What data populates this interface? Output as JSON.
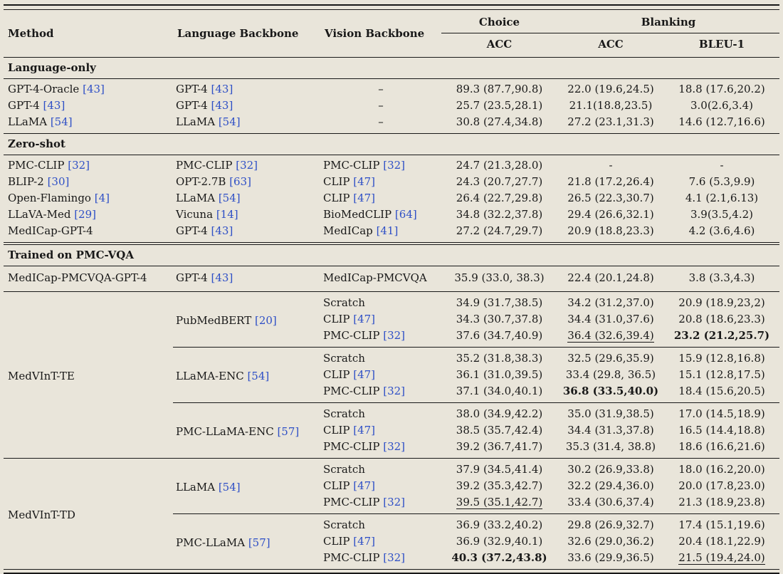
{
  "theme": {
    "background": "#e9e5da",
    "text": "#181818",
    "citation": "#2e4fc6",
    "rule": "#181818"
  },
  "header": {
    "method": "Method",
    "language": "Language Backbone",
    "vision": "Vision Backbone",
    "choice": "Choice",
    "blanking": "Blanking",
    "choice_acc": "ACC",
    "blanking_acc": "ACC",
    "bleu": "BLEU-1"
  },
  "sections": [
    {
      "label": "Language-only",
      "rows": [
        {
          "method": "GPT-4-Oracle [43]",
          "lang": "GPT-4 [43]",
          "vision": "–",
          "vals": [
            "89.3 (87.7,90.8)",
            "22.0 (19.6,24.5)",
            "18.8 (17.6,20.2)"
          ]
        },
        {
          "method": "GPT-4 [43]",
          "lang": "GPT-4 [43]",
          "vision": "–",
          "vals": [
            "25.7 (23.5,28.1)",
            "21.1(18.8,23.5)",
            "3.0(2.6,3.4)"
          ]
        },
        {
          "method": "LLaMA [54]",
          "lang": "LLaMA [54]",
          "vision": "–",
          "vals": [
            "30.8 (27.4,34.8)",
            "27.2 (23.1,31.3)",
            "14.6 (12.7,16.6)"
          ]
        }
      ]
    },
    {
      "label": "Zero-shot",
      "rows": [
        {
          "method": "PMC-CLIP [32]",
          "lang": "PMC-CLIP [32]",
          "vision": "PMC-CLIP [32]",
          "vals": [
            "24.7 (21.3,28.0)",
            "-",
            "-"
          ]
        },
        {
          "method": "BLIP-2 [30]",
          "lang": "OPT-2.7B [63]",
          "vision": "CLIP [47]",
          "vals": [
            "24.3 (20.7,27.7)",
            "21.8 (17.2,26.4)",
            "7.6 (5.3,9.9)"
          ]
        },
        {
          "method": "Open-Flamingo [4]",
          "lang": "LLaMA [54]",
          "vision": "CLIP [47]",
          "vals": [
            "26.4 (22.7,29.8)",
            "26.5 (22.3,30.7)",
            "4.1 (2.1,6.13)"
          ]
        },
        {
          "method": "LLaVA-Med [29]",
          "lang": "Vicuna [14]",
          "vision": "BioMedCLIP [64]",
          "vals": [
            "34.8 (32.2,37.8)",
            "29.4 (26.6,32.1)",
            "3.9(3.5,4.2)"
          ]
        },
        {
          "method": "MedICap-GPT-4",
          "lang": "GPT-4 [43]",
          "vision": "MedICap [41]",
          "vals": [
            "27.2 (24.7,29.7)",
            "20.9 (18.8,23.3)",
            "4.2 (3.6,4.6)"
          ]
        }
      ]
    },
    {
      "label": "Trained on PMC-VQA",
      "double_top_rule": true,
      "rows": [
        {
          "method": "MedICap-PMCVQA-GPT-4",
          "lang": "GPT-4 [43]",
          "vision": "MedICap-PMCVQA",
          "vals": [
            "35.9 (33.0, 38.3)",
            "22.4 (20.1,24.8)",
            "3.8 (3.3,4.3)"
          ]
        }
      ],
      "blocks": [
        {
          "method": "MedVInT-TE",
          "groups": [
            {
              "lang": "PubMedBERT [20]",
              "rows": [
                {
                  "vision": "Scratch",
                  "vals": [
                    "34.9 (31.7,38.5)",
                    "34.2 (31.2,37.0)",
                    "20.9 (18.9,23,2)"
                  ]
                },
                {
                  "vision": "CLIP [47]",
                  "vals": [
                    "34.3 (30.7,37.8)",
                    "34.4 (31.0,37.6)",
                    "20.8 (18.6,23.3)"
                  ]
                },
                {
                  "vision": "PMC-CLIP [32]",
                  "vals": [
                    "37.6 (34.7,40.9)",
                    {
                      "t": "36.4 (32.6,39.4)",
                      "s": "u"
                    },
                    {
                      "t": "23.2 (21.2,25.7)",
                      "s": "b"
                    }
                  ]
                }
              ]
            },
            {
              "lang": "LLaMA-ENC [54]",
              "rows": [
                {
                  "vision": "Scratch",
                  "vals": [
                    "35.2 (31.8,38.3)",
                    "32.5 (29.6,35.9)",
                    "15.9 (12.8,16.8)"
                  ]
                },
                {
                  "vision": "CLIP [47]",
                  "vals": [
                    "36.1 (31.0,39.5)",
                    "33.4 (29.8, 36.5)",
                    "15.1 (12.8,17.5)"
                  ]
                },
                {
                  "vision": "PMC-CLIP [32]",
                  "vals": [
                    "37.1 (34.0,40.1)",
                    {
                      "t": "36.8 (33.5,40.0)",
                      "s": "b"
                    },
                    "18.4 (15.6,20.5)"
                  ]
                }
              ]
            },
            {
              "lang": "PMC-LLaMA-ENC [57]",
              "rows": [
                {
                  "vision": "Scratch",
                  "vals": [
                    "38.0 (34.9,42.2)",
                    "35.0 (31.9,38.5)",
                    "17.0 (14.5,18.9)"
                  ]
                },
                {
                  "vision": "CLIP [47]",
                  "vals": [
                    "38.5 (35.7,42.4)",
                    "34.4 (31.3,37.8)",
                    "16.5 (14.4,18.8)"
                  ]
                },
                {
                  "vision": "PMC-CLIP [32]",
                  "vals": [
                    "39.2 (36.7,41.7)",
                    "35.3 (31.4, 38.8)",
                    "18.6 (16.6,21.6)"
                  ]
                }
              ]
            }
          ]
        },
        {
          "method": "MedVInT-TD",
          "groups": [
            {
              "lang": "LLaMA [54]",
              "rows": [
                {
                  "vision": "Scratch",
                  "vals": [
                    "37.9 (34.5,41.4)",
                    "30.2 (26.9,33.8)",
                    "18.0 (16.2,20.0)"
                  ]
                },
                {
                  "vision": "CLIP [47]",
                  "vals": [
                    "39.2 (35.3,42.7)",
                    "32.2 (29.4,36.0)",
                    "20.0 (17.8,23.0)"
                  ]
                },
                {
                  "vision": "PMC-CLIP [32]",
                  "vals": [
                    {
                      "t": "39.5 (35.1,42.7)",
                      "s": "u"
                    },
                    "33.4 (30.6,37.4)",
                    "21.3 (18.9,23.8)"
                  ]
                }
              ]
            },
            {
              "lang": "PMC-LLaMA [57]",
              "rows": [
                {
                  "vision": "Scratch",
                  "vals": [
                    "36.9 (33.2,40.2)",
                    "29.8 (26.9,32.7)",
                    "17.4 (15.1,19.6)"
                  ]
                },
                {
                  "vision": "CLIP [47]",
                  "vals": [
                    "36.9 (32.9,40.1)",
                    "32.6 (29.0,36.2)",
                    "20.4 (18.1,22.9)"
                  ]
                },
                {
                  "vision": "PMC-CLIP [32]",
                  "vals": [
                    {
                      "t": "40.3 (37.2,43.8)",
                      "s": "b"
                    },
                    "33.6 (29.9,36.5)",
                    {
                      "t": "21.5 (19.4,24.0)",
                      "s": "u"
                    }
                  ]
                }
              ]
            }
          ]
        }
      ]
    }
  ]
}
